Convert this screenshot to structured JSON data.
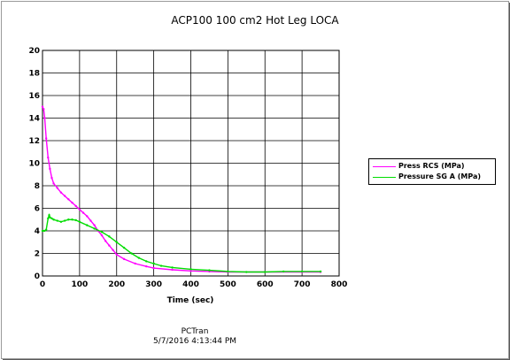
{
  "chart_data": {
    "type": "line",
    "title": "ACP100 100 cm2 Hot Leg LOCA",
    "xlabel": "Time (sec)",
    "ylabel": "",
    "xlim": [
      0,
      800
    ],
    "ylim": [
      0,
      20
    ],
    "xticks": [
      0,
      100,
      200,
      300,
      400,
      500,
      600,
      700,
      800
    ],
    "yticks": [
      0,
      2,
      4,
      6,
      8,
      10,
      12,
      14,
      16,
      18,
      20
    ],
    "grid": true,
    "legend_position": "right",
    "series": [
      {
        "name": "Press RCS (MPa)",
        "color": "#ff00ff",
        "x": [
          0,
          3,
          6,
          10,
          15,
          20,
          25,
          30,
          40,
          50,
          60,
          70,
          80,
          90,
          100,
          110,
          120,
          130,
          140,
          150,
          160,
          170,
          180,
          190,
          200,
          220,
          250,
          280,
          300,
          350,
          400,
          450,
          500,
          600,
          700,
          750
        ],
        "values": [
          15.0,
          14.8,
          14.0,
          12.2,
          10.5,
          9.5,
          8.7,
          8.2,
          7.8,
          7.4,
          7.1,
          6.8,
          6.5,
          6.2,
          5.9,
          5.6,
          5.3,
          4.9,
          4.5,
          4.0,
          3.6,
          3.1,
          2.7,
          2.3,
          1.9,
          1.5,
          1.1,
          0.85,
          0.7,
          0.55,
          0.45,
          0.4,
          0.35,
          0.35,
          0.35,
          0.35
        ]
      },
      {
        "name": "Pressure SG A (MPa)",
        "color": "#00dd00",
        "x": [
          0,
          5,
          10,
          15,
          18,
          20,
          25,
          30,
          40,
          50,
          60,
          70,
          80,
          90,
          100,
          120,
          140,
          160,
          180,
          200,
          220,
          240,
          260,
          280,
          300,
          320,
          350,
          400,
          450,
          500,
          550,
          600,
          650,
          700,
          750
        ],
        "values": [
          4.0,
          4.0,
          4.1,
          5.1,
          5.4,
          5.2,
          5.1,
          5.0,
          4.9,
          4.8,
          4.9,
          5.0,
          5.0,
          4.95,
          4.8,
          4.5,
          4.2,
          3.9,
          3.5,
          3.0,
          2.5,
          2.0,
          1.6,
          1.3,
          1.1,
          0.9,
          0.75,
          0.6,
          0.5,
          0.4,
          0.35,
          0.35,
          0.4,
          0.4,
          0.4
        ]
      }
    ]
  },
  "footer": {
    "program": "PCTran",
    "timestamp": "5/7/2016 4:13:44 PM"
  }
}
